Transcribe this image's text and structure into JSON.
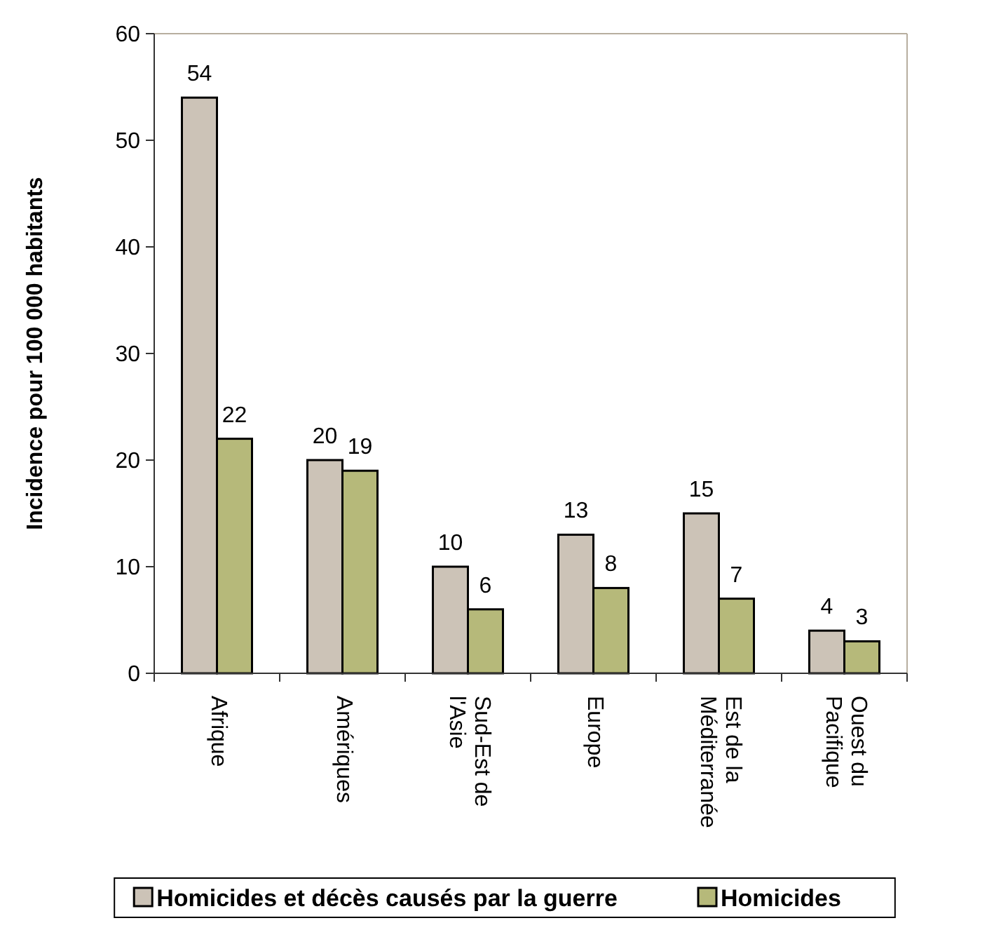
{
  "chart_data": {
    "type": "bar",
    "ylabel": "Incidence pour 100 000 habitants",
    "categories": [
      "Afrique",
      "Amériques",
      "Sud-Est de l'Asie",
      "Europe",
      "Est de la Méditerranée",
      "Ouest du Pacifique"
    ],
    "series": [
      {
        "name": "Homicides et décès causés par la guerre",
        "color": "#ccc3b7",
        "values": [
          54,
          20,
          10,
          13,
          15,
          4
        ]
      },
      {
        "name": "Homicides",
        "color": "#b6b97a",
        "values": [
          22,
          19,
          6,
          8,
          7,
          3
        ]
      }
    ],
    "ylim": [
      0,
      60
    ],
    "yticks": [
      0,
      10,
      20,
      30,
      40,
      50,
      60
    ],
    "data_labels": true,
    "legend": "bottom",
    "grid": false
  }
}
